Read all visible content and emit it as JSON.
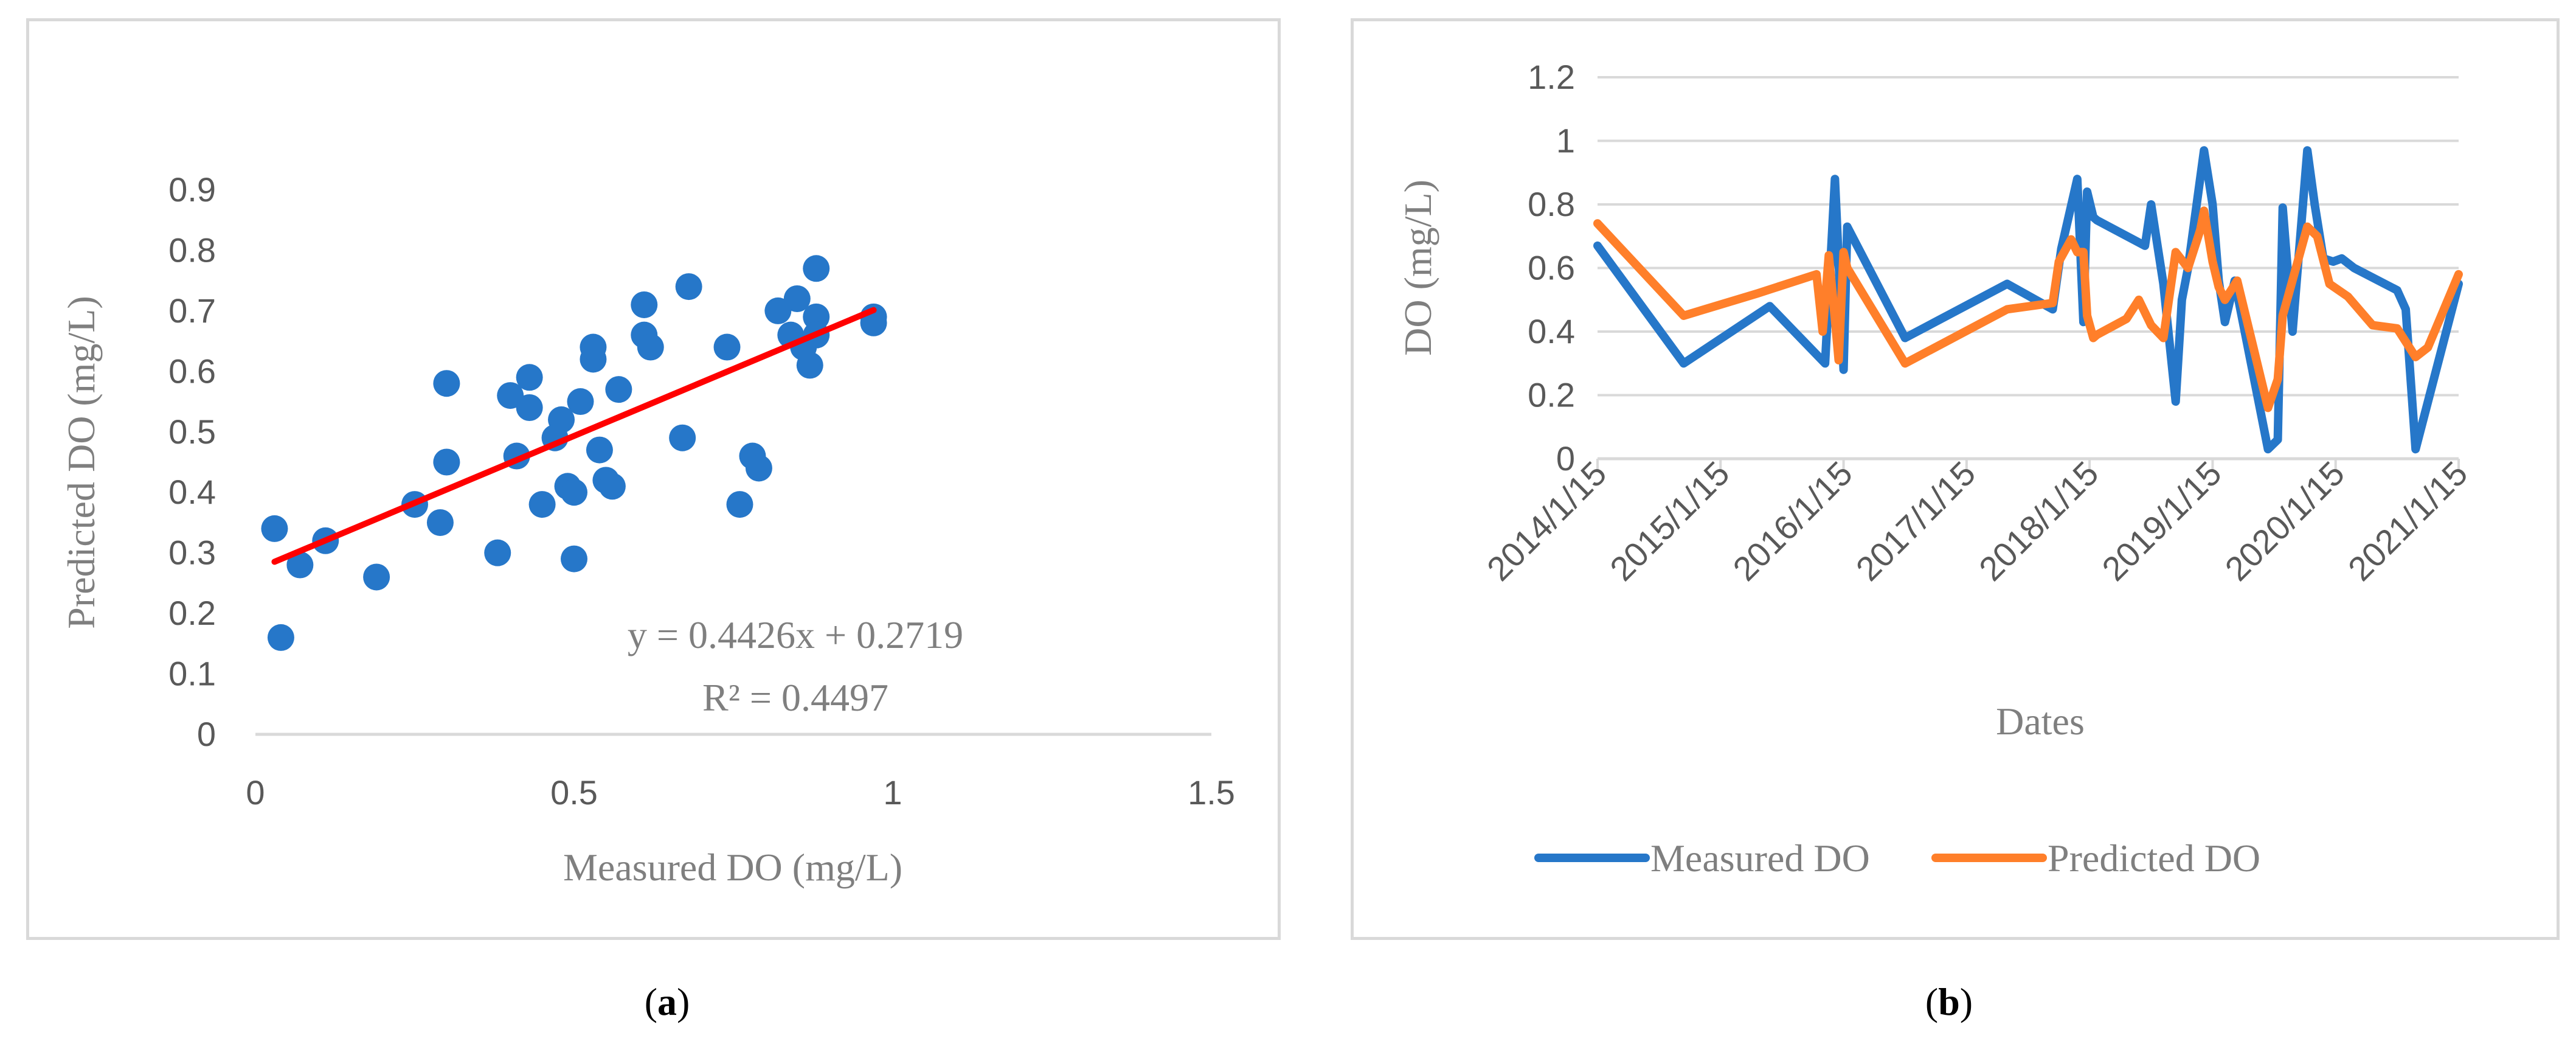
{
  "chart_data": [
    {
      "type": "scatter",
      "panel": "a",
      "title": "",
      "xlabel": "Measured DO (mg/L)",
      "ylabel": "Predicted DO (mg/L)",
      "xlim": [
        0,
        1.5
      ],
      "ylim": [
        0,
        0.9
      ],
      "xticks": [
        "0",
        "0.5",
        "1",
        "1.5"
      ],
      "yticks": [
        "0",
        "0.1",
        "0.2",
        "0.3",
        "0.4",
        "0.5",
        "0.6",
        "0.7",
        "0.8",
        "0.9"
      ],
      "grid": false,
      "points": [
        [
          0.03,
          0.34
        ],
        [
          0.04,
          0.16
        ],
        [
          0.07,
          0.28
        ],
        [
          0.11,
          0.32
        ],
        [
          0.19,
          0.26
        ],
        [
          0.25,
          0.38
        ],
        [
          0.29,
          0.35
        ],
        [
          0.3,
          0.45
        ],
        [
          0.3,
          0.58
        ],
        [
          0.38,
          0.3
        ],
        [
          0.4,
          0.56
        ],
        [
          0.41,
          0.46
        ],
        [
          0.43,
          0.54
        ],
        [
          0.43,
          0.59
        ],
        [
          0.45,
          0.38
        ],
        [
          0.47,
          0.49
        ],
        [
          0.48,
          0.52
        ],
        [
          0.49,
          0.41
        ],
        [
          0.5,
          0.29
        ],
        [
          0.5,
          0.4
        ],
        [
          0.51,
          0.55
        ],
        [
          0.53,
          0.62
        ],
        [
          0.53,
          0.64
        ],
        [
          0.54,
          0.47
        ],
        [
          0.55,
          0.42
        ],
        [
          0.56,
          0.41
        ],
        [
          0.57,
          0.57
        ],
        [
          0.61,
          0.71
        ],
        [
          0.61,
          0.66
        ],
        [
          0.62,
          0.64
        ],
        [
          0.67,
          0.49
        ],
        [
          0.68,
          0.74
        ],
        [
          0.74,
          0.64
        ],
        [
          0.76,
          0.38
        ],
        [
          0.78,
          0.46
        ],
        [
          0.79,
          0.44
        ],
        [
          0.82,
          0.7
        ],
        [
          0.84,
          0.66
        ],
        [
          0.85,
          0.72
        ],
        [
          0.86,
          0.64
        ],
        [
          0.87,
          0.61
        ],
        [
          0.88,
          0.69
        ],
        [
          0.88,
          0.66
        ],
        [
          0.88,
          0.77
        ],
        [
          0.97,
          0.68
        ],
        [
          0.97,
          0.69
        ]
      ],
      "trendline": {
        "x": [
          0.03,
          0.97
        ],
        "slope": 0.4426,
        "intercept": 0.2719,
        "color": "#ff0000"
      },
      "annotations": [
        "y = 0.4426x + 0.2719",
        "R² = 0.4497"
      ],
      "point_color": "#2677c9"
    },
    {
      "type": "line",
      "panel": "b",
      "title": "",
      "xlabel": "Dates",
      "ylabel": "DO (mg/L)",
      "xlim": [
        "2014/1/15",
        "2021/1/15"
      ],
      "xtick_positions": [
        0,
        1,
        2,
        3,
        4,
        5,
        6,
        7
      ],
      "xticks": [
        "2014/1/15",
        "2015/1/15",
        "2016/1/15",
        "2017/1/15",
        "2018/1/15",
        "2019/1/15",
        "2020/1/15",
        "2021/1/15"
      ],
      "ylim": [
        0,
        1.2
      ],
      "yticks": [
        "0",
        "0.2",
        "0.4",
        "0.6",
        "0.8",
        "1",
        "1.2"
      ],
      "grid": true,
      "legend_position": "bottom",
      "series": [
        {
          "name": "Measured DO",
          "color": "#2677c9",
          "x": [
            0,
            0.7,
            1.4,
            1.85,
            1.93,
            2.0,
            2.03,
            2.5,
            3.33,
            3.7,
            3.77,
            3.9,
            3.95,
            3.98,
            4.03,
            4.06,
            4.45,
            4.5,
            4.6,
            4.7,
            4.75,
            4.8,
            4.93,
            5.0,
            5.05,
            5.1,
            5.18,
            5.45,
            5.53,
            5.57,
            5.65,
            5.77,
            5.83,
            5.9,
            5.98,
            6.05,
            6.15,
            6.5,
            6.57,
            6.65,
            7.0
          ],
          "y": [
            0.67,
            0.3,
            0.48,
            0.3,
            0.88,
            0.28,
            0.73,
            0.38,
            0.55,
            0.47,
            0.66,
            0.88,
            0.43,
            0.84,
            0.76,
            0.75,
            0.67,
            0.8,
            0.55,
            0.18,
            0.5,
            0.6,
            0.97,
            0.8,
            0.56,
            0.43,
            0.56,
            0.03,
            0.06,
            0.79,
            0.4,
            0.97,
            0.8,
            0.63,
            0.62,
            0.63,
            0.6,
            0.53,
            0.47,
            0.03,
            0.55
          ]
        },
        {
          "name": "Predicted DO",
          "color": "#ff7f2a",
          "x": [
            0,
            0.7,
            1.3,
            1.78,
            1.83,
            1.88,
            1.93,
            1.96,
            2.0,
            2.03,
            2.5,
            3.33,
            3.7,
            3.75,
            3.85,
            3.9,
            3.95,
            3.98,
            4.03,
            4.06,
            4.3,
            4.4,
            4.5,
            4.6,
            4.7,
            4.8,
            4.9,
            4.93,
            5.0,
            5.05,
            5.1,
            5.2,
            5.45,
            5.53,
            5.57,
            5.77,
            5.85,
            5.95,
            6.1,
            6.3,
            6.5,
            6.65,
            6.75,
            7.0
          ],
          "y": [
            0.74,
            0.45,
            0.52,
            0.58,
            0.4,
            0.64,
            0.44,
            0.31,
            0.65,
            0.6,
            0.3,
            0.47,
            0.49,
            0.62,
            0.69,
            0.65,
            0.65,
            0.45,
            0.38,
            0.39,
            0.44,
            0.5,
            0.42,
            0.38,
            0.65,
            0.6,
            0.72,
            0.78,
            0.62,
            0.54,
            0.5,
            0.56,
            0.16,
            0.25,
            0.45,
            0.73,
            0.7,
            0.55,
            0.51,
            0.42,
            0.41,
            0.32,
            0.35,
            0.58
          ]
        }
      ]
    }
  ],
  "captions": [
    {
      "open": "(",
      "letter": "a",
      "close": ")"
    },
    {
      "open": "(",
      "letter": "b",
      "close": ")"
    }
  ]
}
